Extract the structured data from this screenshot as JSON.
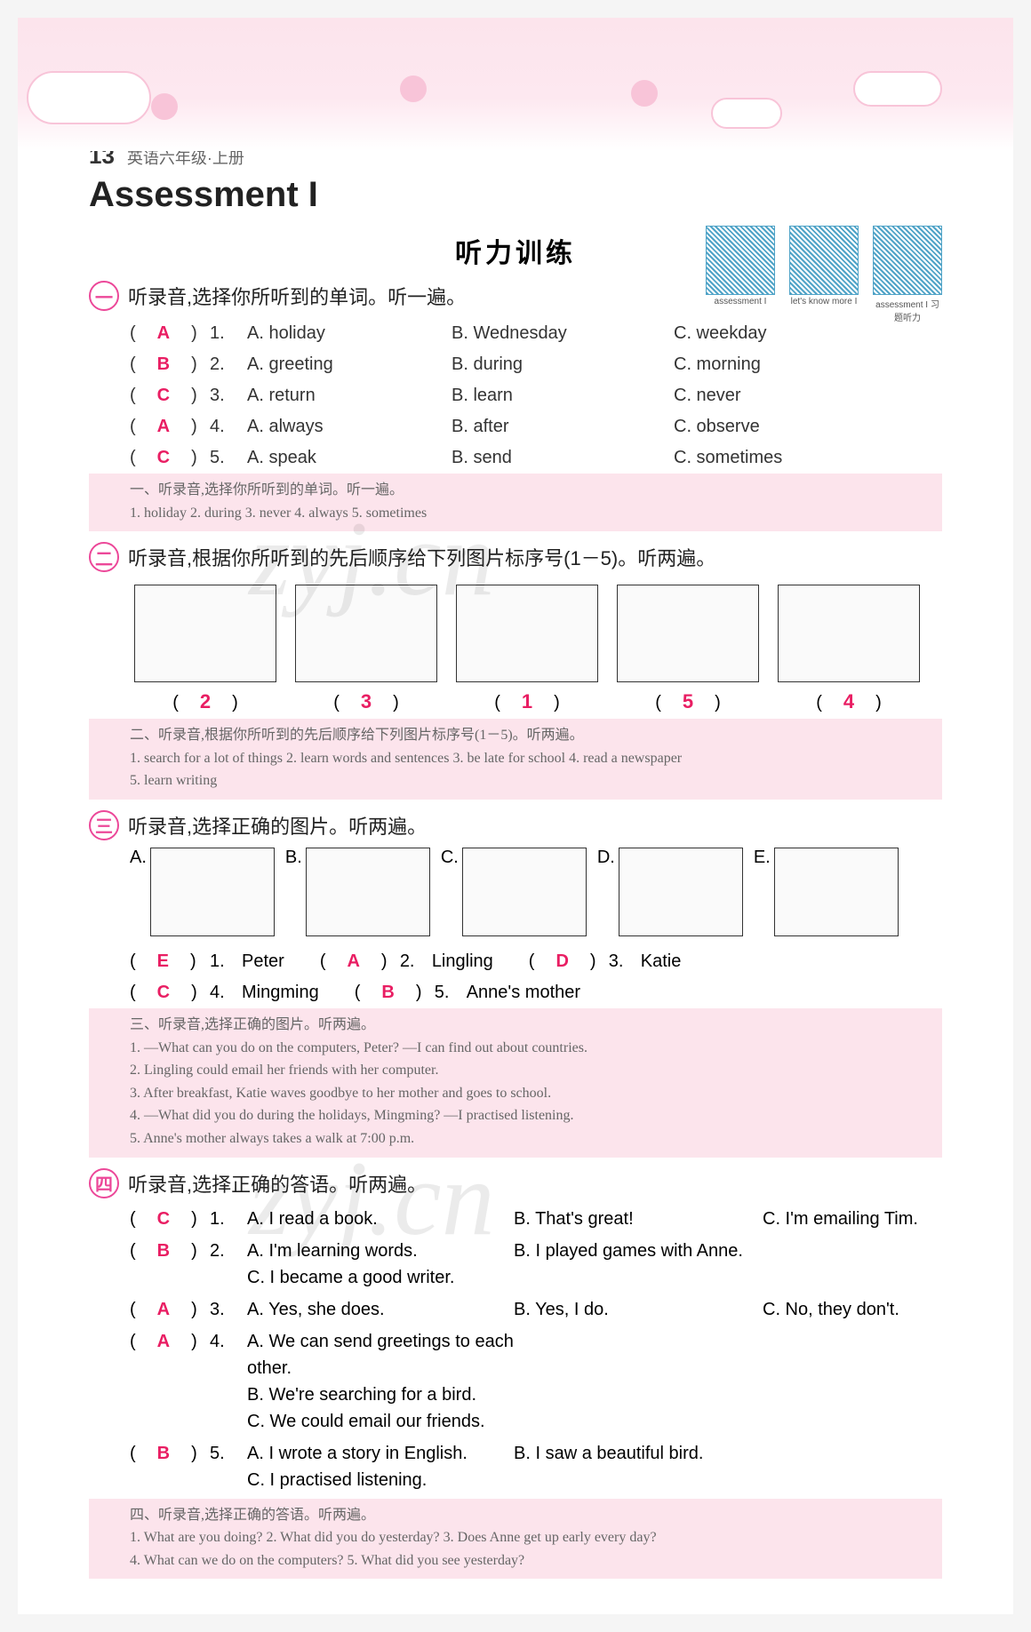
{
  "page_number": "13",
  "book_title": "英语六年级·上册",
  "assessment_title": "Assessment  I",
  "listening_heading": "听力训练",
  "qr_codes": [
    {
      "caption": "assessment  I"
    },
    {
      "caption": "let's know more I"
    },
    {
      "caption": "assessment  I\n习题听力"
    }
  ],
  "colors": {
    "accent": "#e91e63",
    "badge_border": "#ec4899",
    "pink_bg": "#fce4ec",
    "header_grad_top": "#fce4ec",
    "text": "#333333",
    "subtext": "#666666"
  },
  "sections": [
    {
      "badge": "一",
      "title": "听录音,选择你所听到的单词。听一遍。",
      "items": [
        {
          "ans": "A",
          "num": "1.",
          "a": "A. holiday",
          "b": "B. Wednesday",
          "c": "C. weekday"
        },
        {
          "ans": "B",
          "num": "2.",
          "a": "A. greeting",
          "b": "B. during",
          "c": "C. morning"
        },
        {
          "ans": "C",
          "num": "3.",
          "a": "A. return",
          "b": "B. learn",
          "c": "C. never"
        },
        {
          "ans": "A",
          "num": "4.",
          "a": "A. always",
          "b": "B. after",
          "c": "C. observe"
        },
        {
          "ans": "C",
          "num": "5.",
          "a": "A. speak",
          "b": "B. send",
          "c": "C. sometimes"
        }
      ],
      "script_title": "一、听录音,选择你所听到的单词。听一遍。",
      "script_items": "1. holiday   2. during   3. never   4. always   5. sometimes"
    },
    {
      "badge": "二",
      "title": "听录音,根据你所听到的先后顺序给下列图片标序号(1－5)。听两遍。",
      "pic_answers": [
        "2",
        "3",
        "1",
        "5",
        "4"
      ],
      "script_title": "二、听录音,根据你所听到的先后顺序给下列图片标序号(1－5)。听两遍。",
      "script_items_lines": [
        "1. search for a lot of things   2. learn words and sentences   3. be late for school   4. read a newspaper",
        "5. learn writing"
      ]
    },
    {
      "badge": "三",
      "title": "听录音,选择正确的图片。听两遍。",
      "options": [
        "A.",
        "B.",
        "C.",
        "D.",
        "E."
      ],
      "answers_row1": [
        {
          "ans": "E",
          "num": "1.",
          "name": "Peter"
        },
        {
          "ans": "A",
          "num": "2.",
          "name": "Lingling"
        },
        {
          "ans": "D",
          "num": "3.",
          "name": "Katie"
        }
      ],
      "answers_row2": [
        {
          "ans": "C",
          "num": "4.",
          "name": "Mingming"
        },
        {
          "ans": "B",
          "num": "5.",
          "name": "Anne's mother"
        }
      ],
      "script_title": "三、听录音,选择正确的图片。听两遍。",
      "script_lines": [
        "1. —What can you do on the computers, Peter?  —I can find out about countries.",
        "2. Lingling could email her friends with her computer.",
        "3. After breakfast, Katie waves goodbye to her mother and goes to school.",
        "4. —What did you do during the holidays, Mingming?  —I practised listening.",
        "5. Anne's mother always takes a walk at 7:00 p.m."
      ]
    },
    {
      "badge": "四",
      "title": "听录音,选择正确的答语。听两遍。",
      "items": [
        {
          "ans": "C",
          "num": "1.",
          "lines": [
            [
              {
                "label": "A.",
                "text": "I read a book."
              },
              {
                "label": "B.",
                "text": "That's great!"
              },
              {
                "label": "C.",
                "text": "I'm emailing Tim."
              }
            ]
          ]
        },
        {
          "ans": "B",
          "num": "2.",
          "lines": [
            [
              {
                "label": "A.",
                "text": "I'm learning words."
              },
              {
                "label": "B.",
                "text": "I played games with Anne."
              }
            ],
            [
              {
                "label": "C.",
                "text": "I became a good writer."
              }
            ]
          ]
        },
        {
          "ans": "A",
          "num": "3.",
          "lines": [
            [
              {
                "label": "A.",
                "text": "Yes, she does."
              },
              {
                "label": "B.",
                "text": "Yes, I do."
              },
              {
                "label": "C.",
                "text": "No, they don't."
              }
            ]
          ]
        },
        {
          "ans": "A",
          "num": "4.",
          "lines": [
            [
              {
                "label": "A.",
                "text": "We can send greetings to each other."
              }
            ],
            [
              {
                "label": "B.",
                "text": "We're searching for a bird."
              }
            ],
            [
              {
                "label": "C.",
                "text": "We could email our friends."
              }
            ]
          ]
        },
        {
          "ans": "B",
          "num": "5.",
          "lines": [
            [
              {
                "label": "A.",
                "text": "I wrote a story in English."
              },
              {
                "label": "B.",
                "text": "I saw a beautiful bird."
              }
            ],
            [
              {
                "label": "C.",
                "text": "I practised listening."
              }
            ]
          ]
        }
      ],
      "script_title": "四、听录音,选择正确的答语。听两遍。",
      "script_lines": [
        "1. What are you doing?    2. What did you do yesterday?    3. Does Anne get up early every day?",
        "4. What can we do on the computers?    5. What did you see yesterday?"
      ]
    }
  ],
  "watermark": "zyj.cn"
}
